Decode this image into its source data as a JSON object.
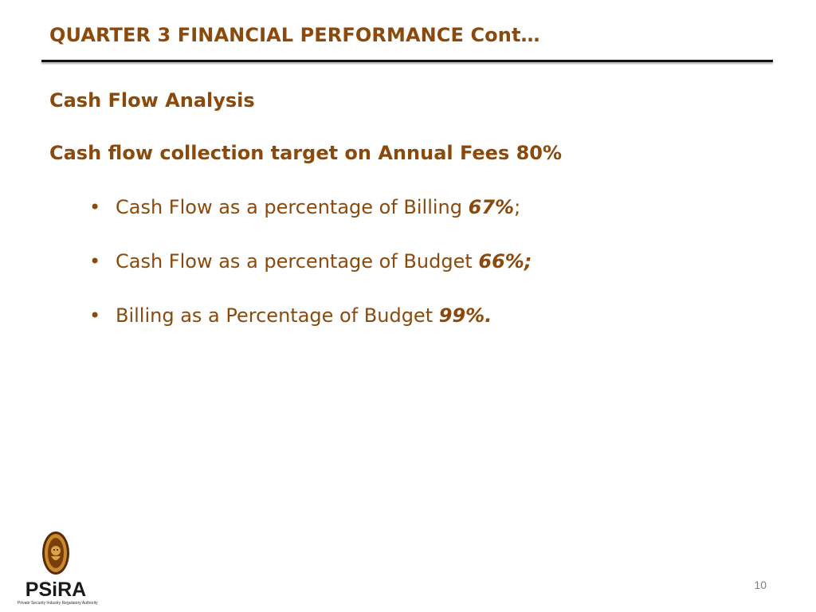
{
  "slide": {
    "title": "QUARTER 3 FINANCIAL PERFORMANCE Cont…",
    "section_heading": "Cash Flow Analysis",
    "target": {
      "label": "Cash flow collection target on Annual Fees ",
      "value": "80%"
    },
    "bullets": [
      {
        "glyph": "•",
        "text": "Cash Flow as a percentage of Billing ",
        "value": "67%",
        "suffix": ";"
      },
      {
        "glyph": "•",
        "text": "Cash Flow as a percentage of Budget ",
        "value": "66%;",
        "suffix": ""
      },
      {
        "glyph": "•",
        "text": "Billing as a Percentage of Budget ",
        "value": "99%.",
        "suffix": ""
      }
    ],
    "page_number": "10"
  },
  "logo": {
    "name": "PSiRA",
    "tagline": "Private Security Industry Regulatory Authority",
    "icon": "lion-shield-icon"
  },
  "colors": {
    "text_brown": "#8b4a0c",
    "rule": "#111111",
    "page_number": "#7f7f7f"
  }
}
